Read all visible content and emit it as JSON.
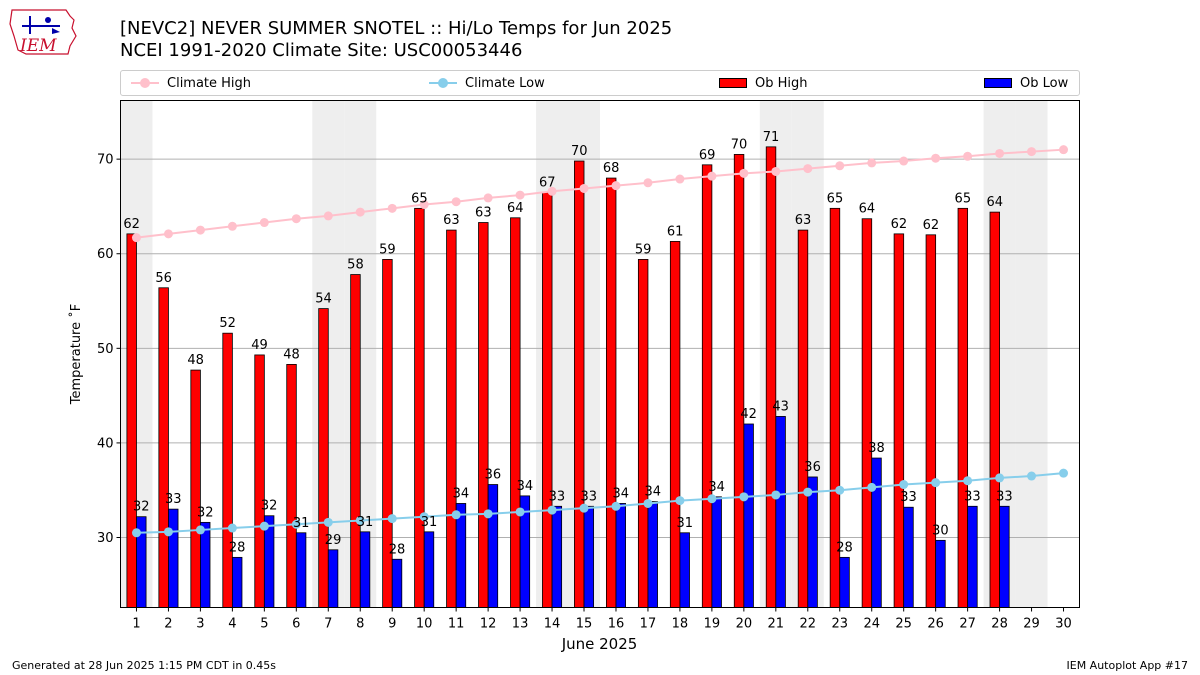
{
  "header": {
    "title_line1": "[NEVC2] NEVER SUMMER SNOTEL :: Hi/Lo Temps for Jun 2025",
    "title_line2": "NCEI 1991-2020 Climate Site: USC00053446",
    "logo_text": "IEM"
  },
  "footer": {
    "generated": "Generated at 28 Jun 2025 1:15 PM CDT in 0.45s",
    "app": "IEM Autoplot App #17"
  },
  "colors": {
    "ob_high": "#ff0000",
    "ob_low": "#0000ff",
    "climate_high": "#ffc0cb",
    "climate_low": "#87ceeb",
    "weekend_shade": "#eeeeee",
    "grid": "#b0b0b0"
  },
  "chart_data": {
    "type": "bar",
    "xlabel": "June 2025",
    "ylabel": "Temperature ˚F",
    "xlim": [
      0.5,
      30.5
    ],
    "ylim": [
      22.6,
      76.2
    ],
    "yticks": [
      30,
      40,
      50,
      60,
      70
    ],
    "grid": "horizontal",
    "legend_position": "top",
    "days": [
      1,
      2,
      3,
      4,
      5,
      6,
      7,
      8,
      9,
      10,
      11,
      12,
      13,
      14,
      15,
      16,
      17,
      18,
      19,
      20,
      21,
      22,
      23,
      24,
      25,
      26,
      27,
      28,
      29,
      30
    ],
    "shaded_days": [
      1,
      7,
      8,
      14,
      15,
      21,
      22,
      28,
      29
    ],
    "series": [
      {
        "name": "Climate High",
        "kind": "line",
        "values": [
          61.7,
          62.1,
          62.5,
          62.9,
          63.3,
          63.7,
          64.0,
          64.4,
          64.8,
          65.2,
          65.5,
          65.9,
          66.2,
          66.6,
          66.9,
          67.2,
          67.5,
          67.9,
          68.2,
          68.5,
          68.7,
          69.0,
          69.3,
          69.6,
          69.8,
          70.1,
          70.3,
          70.6,
          70.8,
          71.0
        ]
      },
      {
        "name": "Climate Low",
        "kind": "line",
        "values": [
          30.5,
          30.6,
          30.8,
          31.0,
          31.2,
          31.4,
          31.6,
          31.8,
          32.0,
          32.2,
          32.4,
          32.5,
          32.7,
          32.9,
          33.1,
          33.3,
          33.6,
          33.9,
          34.1,
          34.3,
          34.5,
          34.8,
          35.0,
          35.3,
          35.6,
          35.8,
          36.0,
          36.3,
          36.5,
          36.8
        ]
      },
      {
        "name": "Ob High",
        "kind": "bar",
        "values": [
          62.1,
          56.4,
          47.7,
          51.6,
          49.3,
          48.3,
          54.2,
          57.8,
          59.4,
          64.8,
          62.5,
          63.3,
          63.8,
          66.5,
          69.8,
          68.0,
          59.4,
          61.3,
          69.4,
          70.5,
          71.3,
          62.5,
          64.8,
          63.7,
          62.1,
          62.0,
          64.8,
          64.4,
          null,
          null
        ],
        "labels": [
          "62",
          "56",
          "48",
          "52",
          "49",
          "48",
          "54",
          "58",
          "59",
          "65",
          "63",
          "63",
          "64",
          "67",
          "70",
          "68",
          "59",
          "61",
          "69",
          "70",
          "71",
          "63",
          "65",
          "64",
          "62",
          "62",
          "65",
          "64",
          "",
          ""
        ]
      },
      {
        "name": "Ob Low",
        "kind": "bar",
        "values": [
          32.2,
          33.0,
          31.6,
          27.9,
          32.3,
          30.5,
          28.7,
          30.6,
          27.7,
          30.6,
          33.6,
          35.6,
          34.4,
          33.3,
          33.3,
          33.6,
          33.8,
          30.5,
          34.3,
          42.0,
          42.8,
          36.4,
          27.9,
          38.4,
          33.2,
          29.7,
          33.3,
          33.3,
          null,
          null
        ],
        "labels": [
          "32",
          "33",
          "32",
          "28",
          "32",
          "31",
          "29",
          "31",
          "28",
          "31",
          "34",
          "36",
          "34",
          "33",
          "33",
          "34",
          "34",
          "31",
          "34",
          "42",
          "43",
          "36",
          "28",
          "38",
          "33",
          "30",
          "33",
          "33",
          "",
          ""
        ]
      }
    ]
  }
}
